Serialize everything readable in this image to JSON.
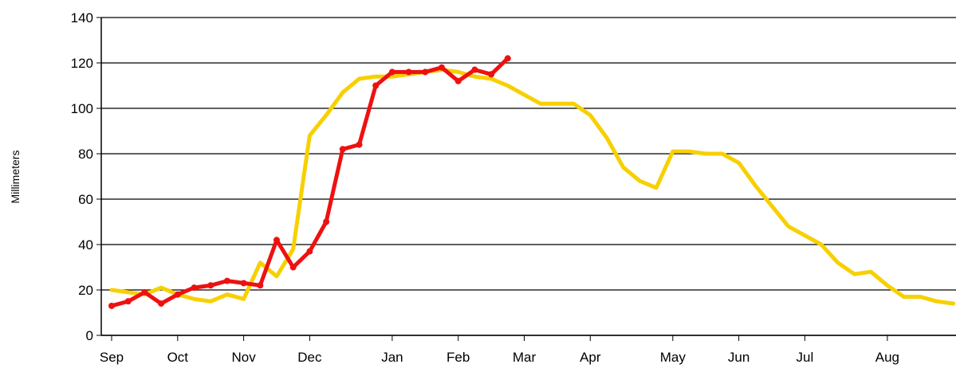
{
  "chart_data": {
    "type": "line",
    "y_label": "Millimeters",
    "categories": [
      "Sep",
      null,
      null,
      null,
      "Oct",
      null,
      null,
      null,
      "Nov",
      null,
      null,
      null,
      "Dec",
      null,
      null,
      null,
      null,
      "Jan",
      null,
      null,
      null,
      "Feb",
      null,
      null,
      null,
      "Mar",
      null,
      null,
      null,
      "Apr",
      null,
      null,
      null,
      null,
      "May",
      null,
      null,
      null,
      "Jun",
      null,
      null,
      null,
      "Jul",
      null,
      null,
      null,
      null,
      "Aug",
      null,
      null,
      null,
      null
    ],
    "series": [
      {
        "color": "#f7d000",
        "markers": false,
        "values": [
          20,
          19,
          18,
          21,
          18,
          16,
          15,
          18,
          16,
          32,
          26,
          38,
          88,
          97,
          107,
          113,
          114,
          114,
          115,
          116,
          117,
          116,
          114,
          113,
          110,
          106,
          102,
          102,
          102,
          97,
          87,
          74,
          68,
          65,
          81,
          81,
          80,
          80,
          76,
          66,
          57,
          48,
          44,
          40,
          32,
          27,
          28,
          22,
          17,
          17,
          15,
          14
        ]
      },
      {
        "color": "#ee1111",
        "markers": true,
        "values": [
          13,
          15,
          19,
          14,
          18,
          21,
          22,
          24,
          23,
          22,
          42,
          30,
          37,
          50,
          82,
          84,
          110,
          116,
          116,
          116,
          118,
          112,
          117,
          115,
          122,
          null,
          null,
          null,
          null,
          null,
          null,
          null,
          null,
          null,
          null,
          null,
          null,
          null,
          null,
          null,
          null,
          null,
          null,
          null,
          null,
          null,
          null,
          null,
          null,
          null,
          null,
          null
        ]
      }
    ],
    "ylim": [
      0,
      140
    ],
    "yticks": [
      0,
      20,
      40,
      60,
      80,
      100,
      120,
      140
    ],
    "grid": true
  }
}
